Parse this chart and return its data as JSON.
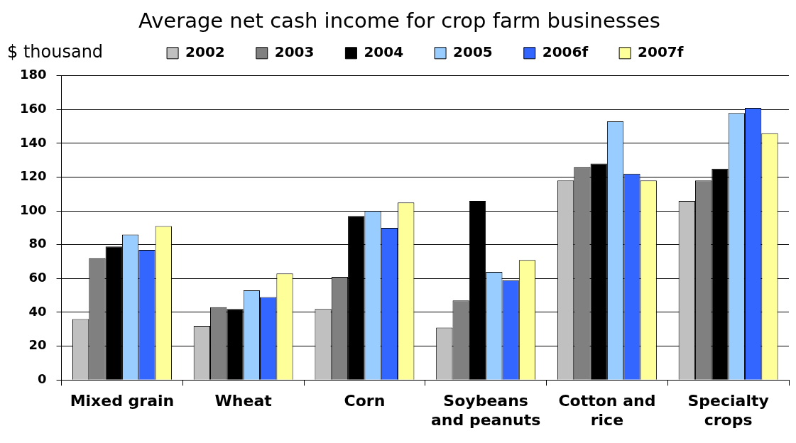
{
  "chart_data": {
    "type": "bar",
    "title": "Average net cash income for crop farm businesses",
    "ylabel": "$ thousand",
    "categories": [
      "Mixed grain",
      "Wheat",
      "Corn",
      "Soybeans and peanuts",
      "Cotton and rice",
      "Specialty crops"
    ],
    "series": [
      {
        "name": "2002",
        "color": "#c0c0c0",
        "values": [
          36,
          32,
          42,
          31,
          118,
          106
        ]
      },
      {
        "name": "2003",
        "color": "#808080",
        "values": [
          72,
          43,
          61,
          47,
          126,
          118
        ]
      },
      {
        "name": "2004",
        "color": "#000000",
        "values": [
          79,
          42,
          97,
          106,
          128,
          125
        ]
      },
      {
        "name": "2005",
        "color": "#99ccff",
        "values": [
          86,
          53,
          100,
          64,
          153,
          158
        ]
      },
      {
        "name": "2006f",
        "color": "#3366ff",
        "values": [
          77,
          49,
          90,
          59,
          122,
          161
        ]
      },
      {
        "name": "2007f",
        "color": "#ffff99",
        "values": [
          91,
          63,
          105,
          71,
          118,
          146
        ]
      }
    ],
    "ylim": [
      0,
      180
    ],
    "yticks": [
      0,
      20,
      40,
      60,
      80,
      100,
      120,
      140,
      160,
      180
    ],
    "grid": "y",
    "legend": "top"
  }
}
